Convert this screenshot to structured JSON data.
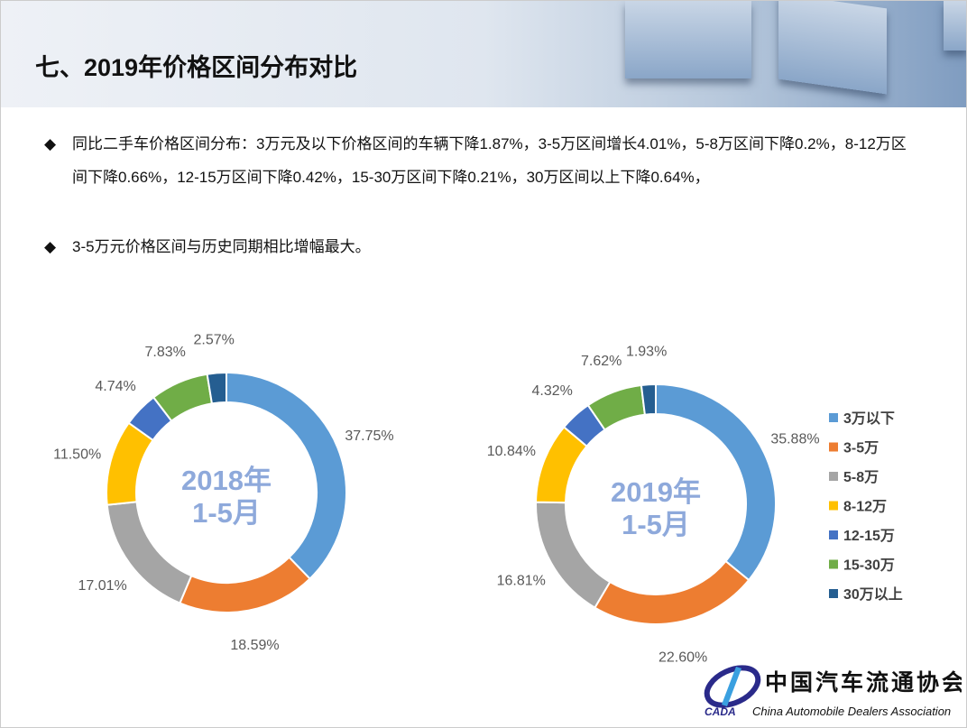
{
  "header": {
    "title": "七、2019年价格区间分布对比"
  },
  "bullets": [
    {
      "icon": "diamond-bullet-icon",
      "symbol": "◆",
      "text": "同比二手车价格区间分布：3万元及以下价格区间的车辆下降1.87%，3-5万区间增长4.01%，5-8万区间下降0.2%，8-12万区间下降0.66%，12-15万区间下降0.42%，15-30万区间下降0.21%，30万区间以上下降0.64%，"
    },
    {
      "icon": "diamond-bullet-icon",
      "symbol": "◆",
      "text": "3-5万元价格区间与历史同期相比增幅最大。"
    }
  ],
  "chart_data": [
    {
      "type": "pie",
      "subtype": "donut",
      "center_label": [
        "2018年",
        "1-5月"
      ],
      "categories": [
        "3万以下",
        "3-5万",
        "5-8万",
        "8-12万",
        "12-15万",
        "15-30万",
        "30万以上"
      ],
      "values": [
        37.75,
        18.59,
        17.01,
        11.5,
        4.74,
        7.83,
        2.57
      ],
      "data_labels": [
        "37.75%",
        "18.59%",
        "17.01%",
        "11.50%",
        "4.74%",
        "7.83%",
        "2.57%"
      ]
    },
    {
      "type": "pie",
      "subtype": "donut",
      "center_label": [
        "2019年",
        "1-5月"
      ],
      "categories": [
        "3万以下",
        "3-5万",
        "5-8万",
        "8-12万",
        "12-15万",
        "15-30万",
        "30万以上"
      ],
      "values": [
        35.88,
        22.6,
        16.81,
        10.84,
        4.32,
        7.62,
        1.93
      ],
      "data_labels": [
        "35.88%",
        "22.60%",
        "16.81%",
        "10.84%",
        "4.32%",
        "7.62%",
        "1.93%"
      ]
    }
  ],
  "legend": {
    "placement": "right",
    "items": [
      "3万以下",
      "3-5万",
      "5-8万",
      "8-12万",
      "12-15万",
      "15-30万",
      "30万以上"
    ]
  },
  "colors": [
    "#5B9BD5",
    "#ED7D31",
    "#A5A5A5",
    "#FFC000",
    "#4472C4",
    "#70AD47",
    "#255E91"
  ],
  "center_label_color": "#8EA9DB",
  "logo": {
    "abbr": "CADA",
    "cn": "中国汽车流通协会",
    "en": "China Automobile Dealers Association"
  }
}
